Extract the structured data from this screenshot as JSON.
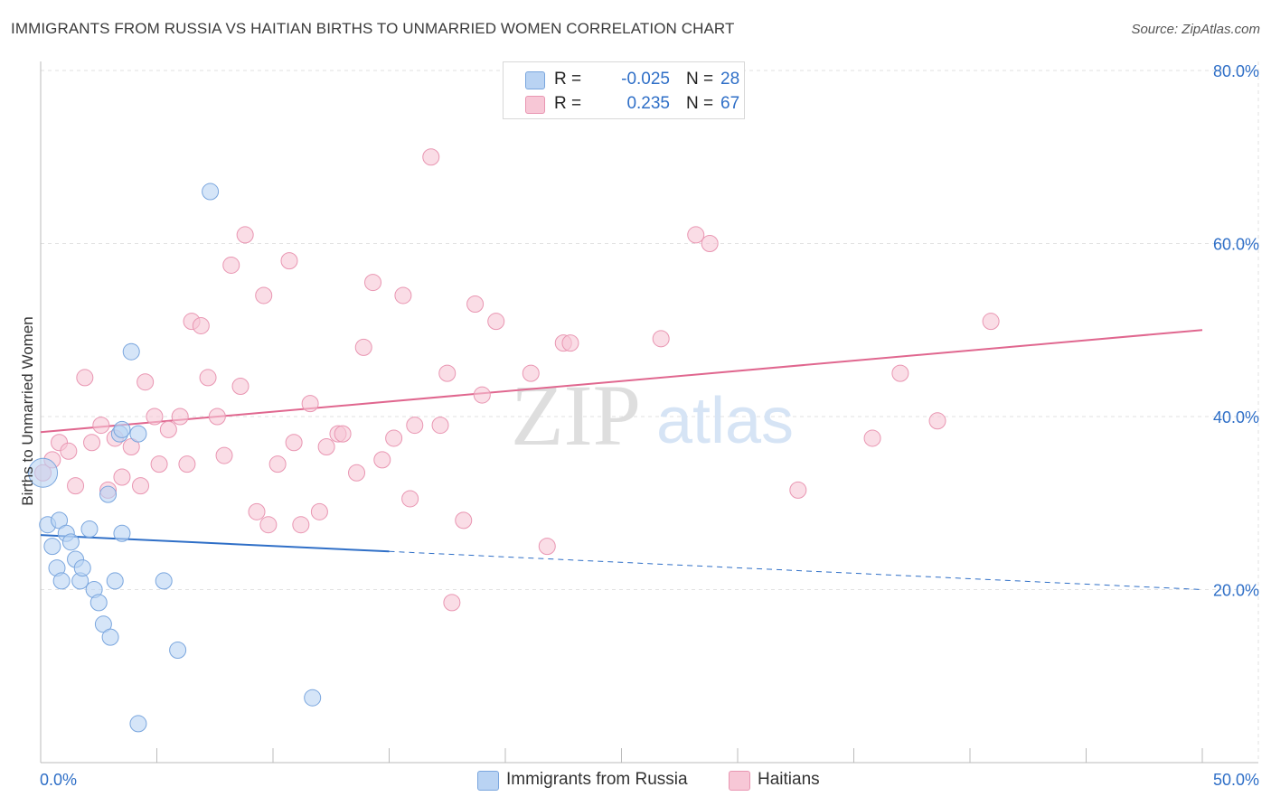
{
  "header": {
    "title": "IMMIGRANTS FROM RUSSIA VS HAITIAN BIRTHS TO UNMARRIED WOMEN CORRELATION CHART",
    "source": "Source: ZipAtlas.com"
  },
  "watermark": {
    "zip": "ZIP",
    "atlas": "atlas"
  },
  "colors": {
    "russia_fill": "#b9d3f3",
    "russia_stroke": "#7aa6de",
    "russia_line": "#2f6fc7",
    "haiti_fill": "#f7c7d6",
    "haiti_stroke": "#e996b2",
    "haiti_line": "#e0678f",
    "value_text": "#2f6fc7",
    "grid": "#e2e2e2"
  },
  "stats": [
    {
      "r_label": "R =",
      "r_value": "-0.025",
      "n_label": "N =",
      "n_value": "28"
    },
    {
      "r_label": "R =",
      "r_value": "0.235",
      "n_label": "N =",
      "n_value": "67"
    }
  ],
  "legend": {
    "russia": "Immigrants from Russia",
    "haiti": "Haitians"
  },
  "chart_data": {
    "type": "scatter",
    "title": "IMMIGRANTS FROM RUSSIA VS HAITIAN BIRTHS TO UNMARRIED WOMEN CORRELATION CHART",
    "xlabel": "",
    "ylabel": "Births to Unmarried Women",
    "xlim": [
      0,
      50
    ],
    "ylim": [
      0,
      80
    ],
    "x_tick_labels": [
      "0.0%",
      "50.0%"
    ],
    "y_ticks": [
      20,
      40,
      60,
      80
    ],
    "y_tick_labels": [
      "20.0%",
      "40.0%",
      "60.0%",
      "80.0%"
    ],
    "grid": true,
    "legend_position": "bottom",
    "series": [
      {
        "name": "Immigrants from Russia",
        "r": -0.025,
        "n": 28,
        "trend": {
          "x0": 0,
          "y0": 26.3,
          "x1": 50,
          "y1": 20.0,
          "solid_until_x": 15
        },
        "points": [
          {
            "x": 0.1,
            "y": 33.5
          },
          {
            "x": 0.3,
            "y": 27.5
          },
          {
            "x": 0.5,
            "y": 25.0
          },
          {
            "x": 0.7,
            "y": 22.5
          },
          {
            "x": 0.8,
            "y": 28.0
          },
          {
            "x": 0.9,
            "y": 21.0
          },
          {
            "x": 1.1,
            "y": 26.5
          },
          {
            "x": 1.3,
            "y": 25.5
          },
          {
            "x": 1.5,
            "y": 23.5
          },
          {
            "x": 1.7,
            "y": 21.0
          },
          {
            "x": 1.8,
            "y": 22.5
          },
          {
            "x": 2.1,
            "y": 27.0
          },
          {
            "x": 2.3,
            "y": 20.0
          },
          {
            "x": 2.5,
            "y": 18.5
          },
          {
            "x": 2.7,
            "y": 16.0
          },
          {
            "x": 2.9,
            "y": 31.0
          },
          {
            "x": 3.0,
            "y": 14.5
          },
          {
            "x": 3.2,
            "y": 21.0
          },
          {
            "x": 3.4,
            "y": 38.0
          },
          {
            "x": 3.5,
            "y": 38.5
          },
          {
            "x": 3.5,
            "y": 26.5
          },
          {
            "x": 3.9,
            "y": 47.5
          },
          {
            "x": 4.2,
            "y": 4.5
          },
          {
            "x": 4.2,
            "y": 38.0
          },
          {
            "x": 5.3,
            "y": 21.0
          },
          {
            "x": 5.9,
            "y": 13.0
          },
          {
            "x": 7.3,
            "y": 66.0
          },
          {
            "x": 11.7,
            "y": 7.5
          }
        ]
      },
      {
        "name": "Haitians",
        "r": 0.235,
        "n": 67,
        "trend": {
          "x0": 0,
          "y0": 38.2,
          "x1": 50,
          "y1": 50.0
        },
        "points": [
          {
            "x": 0.1,
            "y": 33.5
          },
          {
            "x": 0.5,
            "y": 35.0
          },
          {
            "x": 0.8,
            "y": 37.0
          },
          {
            "x": 1.2,
            "y": 36.0
          },
          {
            "x": 1.5,
            "y": 32.0
          },
          {
            "x": 1.9,
            "y": 44.5
          },
          {
            "x": 2.2,
            "y": 37.0
          },
          {
            "x": 2.6,
            "y": 39.0
          },
          {
            "x": 2.9,
            "y": 31.5
          },
          {
            "x": 3.2,
            "y": 37.5
          },
          {
            "x": 3.5,
            "y": 33.0
          },
          {
            "x": 3.9,
            "y": 36.5
          },
          {
            "x": 4.3,
            "y": 32.0
          },
          {
            "x": 4.5,
            "y": 44.0
          },
          {
            "x": 4.9,
            "y": 40.0
          },
          {
            "x": 5.1,
            "y": 34.5
          },
          {
            "x": 5.5,
            "y": 38.5
          },
          {
            "x": 6.0,
            "y": 40.0
          },
          {
            "x": 6.3,
            "y": 34.5
          },
          {
            "x": 6.5,
            "y": 51.0
          },
          {
            "x": 6.9,
            "y": 50.5
          },
          {
            "x": 7.2,
            "y": 44.5
          },
          {
            "x": 7.6,
            "y": 40.0
          },
          {
            "x": 7.9,
            "y": 35.5
          },
          {
            "x": 8.2,
            "y": 57.5
          },
          {
            "x": 8.6,
            "y": 43.5
          },
          {
            "x": 8.8,
            "y": 61.0
          },
          {
            "x": 9.3,
            "y": 29.0
          },
          {
            "x": 9.6,
            "y": 54.0
          },
          {
            "x": 9.8,
            "y": 27.5
          },
          {
            "x": 10.2,
            "y": 34.5
          },
          {
            "x": 10.7,
            "y": 58.0
          },
          {
            "x": 10.9,
            "y": 37.0
          },
          {
            "x": 11.2,
            "y": 27.5
          },
          {
            "x": 11.6,
            "y": 41.5
          },
          {
            "x": 12.0,
            "y": 29.0
          },
          {
            "x": 12.3,
            "y": 36.5
          },
          {
            "x": 12.8,
            "y": 38.0
          },
          {
            "x": 13.0,
            "y": 38.0
          },
          {
            "x": 13.6,
            "y": 33.5
          },
          {
            "x": 13.9,
            "y": 48.0
          },
          {
            "x": 14.3,
            "y": 55.5
          },
          {
            "x": 14.7,
            "y": 35.0
          },
          {
            "x": 15.2,
            "y": 37.5
          },
          {
            "x": 15.6,
            "y": 54.0
          },
          {
            "x": 15.9,
            "y": 30.5
          },
          {
            "x": 16.1,
            "y": 39.0
          },
          {
            "x": 16.8,
            "y": 70.0
          },
          {
            "x": 17.2,
            "y": 39.0
          },
          {
            "x": 17.5,
            "y": 45.0
          },
          {
            "x": 17.7,
            "y": 18.5
          },
          {
            "x": 18.2,
            "y": 28.0
          },
          {
            "x": 18.7,
            "y": 53.0
          },
          {
            "x": 19.0,
            "y": 42.5
          },
          {
            "x": 19.6,
            "y": 51.0
          },
          {
            "x": 21.1,
            "y": 45.0
          },
          {
            "x": 21.8,
            "y": 25.0
          },
          {
            "x": 22.5,
            "y": 48.5
          },
          {
            "x": 22.8,
            "y": 48.5
          },
          {
            "x": 26.7,
            "y": 49.0
          },
          {
            "x": 28.2,
            "y": 61.0
          },
          {
            "x": 28.8,
            "y": 60.0
          },
          {
            "x": 32.6,
            "y": 31.5
          },
          {
            "x": 35.8,
            "y": 37.5
          },
          {
            "x": 37.0,
            "y": 45.0
          },
          {
            "x": 38.6,
            "y": 39.5
          },
          {
            "x": 40.9,
            "y": 51.0
          }
        ]
      }
    ]
  }
}
